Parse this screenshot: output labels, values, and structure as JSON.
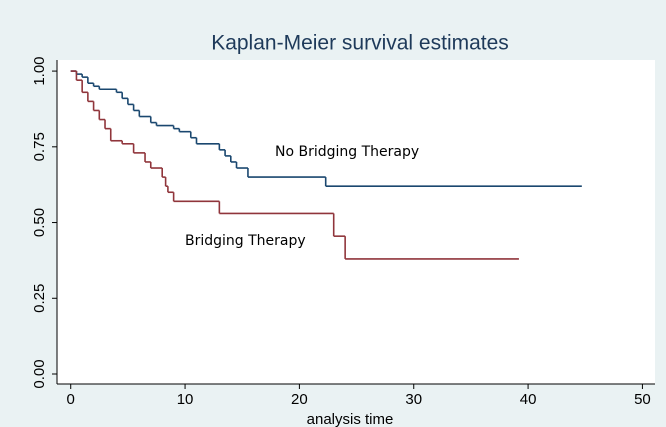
{
  "chart_data": {
    "type": "step",
    "title": "Kaplan-Meier survival estimates",
    "xlabel": "analysis time",
    "xlim": [
      -1.2,
      51.1
    ],
    "ylim": [
      -0.033,
      1.03
    ],
    "xticks": [
      0,
      10,
      20,
      30,
      40,
      50
    ],
    "yticks": [
      {
        "value": 0,
        "label": "0.00"
      },
      {
        "value": 0.25,
        "label": "0.25"
      },
      {
        "value": 0.5,
        "label": "0.50"
      },
      {
        "value": 0.75,
        "label": "0.75"
      },
      {
        "value": 1,
        "label": "1.00"
      }
    ],
    "series": [
      {
        "name": "No Bridging Therapy",
        "color": "#1a476f",
        "x": [
          0,
          0.5,
          1,
          1.5,
          2,
          2.5,
          4,
          4.5,
          5,
          5.5,
          6,
          7,
          7.5,
          9,
          9.5,
          10.5,
          11,
          13,
          13.5,
          14,
          14.5,
          15.5,
          22.3,
          44.7
        ],
        "values": [
          1,
          0.99,
          0.98,
          0.96,
          0.95,
          0.94,
          0.93,
          0.91,
          0.89,
          0.87,
          0.85,
          0.83,
          0.82,
          0.81,
          0.8,
          0.78,
          0.76,
          0.74,
          0.72,
          0.7,
          0.68,
          0.65,
          0.62,
          0.62
        ]
      },
      {
        "name": "Bridging Therapy",
        "color": "#90353b",
        "x": [
          0,
          0.5,
          1,
          1.5,
          2,
          2.5,
          3,
          3.5,
          4.5,
          5.5,
          6.5,
          7,
          8,
          8.3,
          8.5,
          9,
          13,
          23,
          24,
          39.2
        ],
        "values": [
          1,
          0.97,
          0.93,
          0.9,
          0.87,
          0.84,
          0.81,
          0.77,
          0.76,
          0.73,
          0.7,
          0.68,
          0.65,
          0.62,
          0.6,
          0.57,
          0.53,
          0.455,
          0.38,
          0.38
        ]
      }
    ]
  }
}
